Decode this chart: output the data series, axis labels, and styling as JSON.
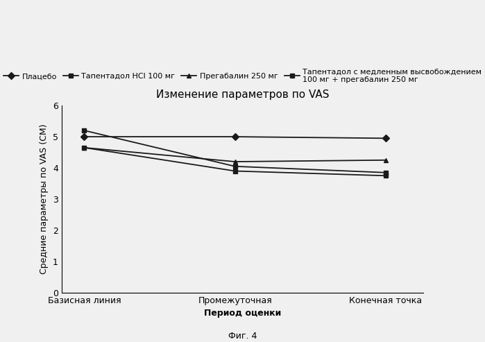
{
  "title": "Изменение параметров по VAS",
  "xlabel": "Период оценки",
  "ylabel": "Средние параметры по VAS (СМ)",
  "xtick_labels": [
    "Базисная линия",
    "Промежуточная",
    "Конечная точка"
  ],
  "ylim": [
    0,
    6
  ],
  "yticks": [
    0,
    1,
    2,
    3,
    4,
    5,
    6
  ],
  "caption": "Фиг. 4",
  "series": [
    {
      "label": "Плацебо",
      "values": [
        5.0,
        5.0,
        4.95
      ],
      "marker": "D",
      "linewidth": 1.3,
      "markersize": 5
    },
    {
      "label": "Тапентадол HCl 100 мг",
      "values": [
        5.2,
        4.05,
        3.85
      ],
      "marker": "s",
      "linewidth": 1.3,
      "markersize": 5
    },
    {
      "label": "Прегабалин 250 мг",
      "values": [
        4.65,
        4.2,
        4.25
      ],
      "marker": "^",
      "linewidth": 1.3,
      "markersize": 5
    },
    {
      "label": "Тапентадол с медленным высвобождением\n100 мг + прегабалин 250 мг",
      "values": [
        4.65,
        3.9,
        3.75
      ],
      "marker": "s",
      "linewidth": 1.3,
      "markersize": 5
    }
  ],
  "background_color": "#f0f0f0",
  "title_fontsize": 11,
  "axis_label_fontsize": 9,
  "tick_fontsize": 9,
  "legend_fontsize": 8
}
